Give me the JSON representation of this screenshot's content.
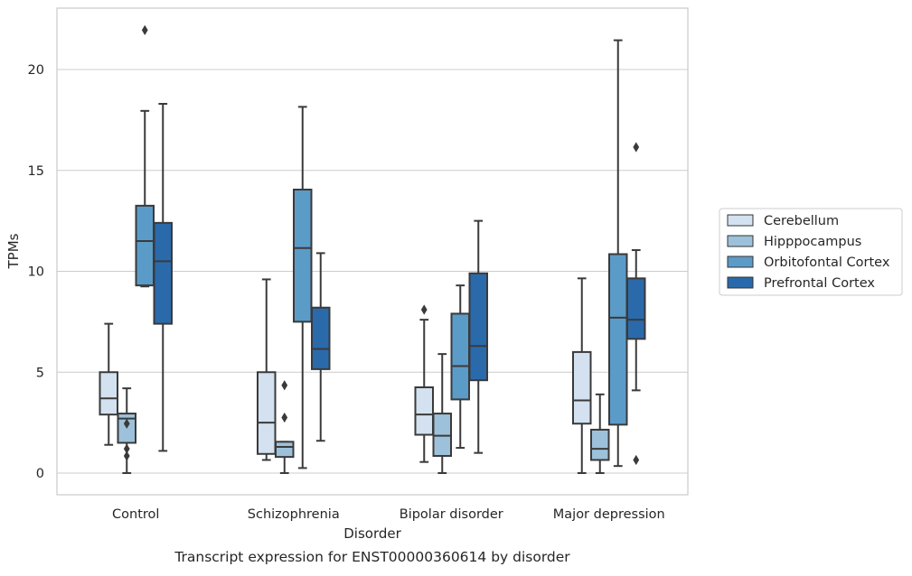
{
  "chart_data": {
    "type": "box",
    "title": "",
    "caption": "Transcript expression for ENST00000360614 by disorder",
    "xlabel": "Disorder",
    "ylabel": "TPMs",
    "ylim": [
      -1.05,
      23.4
    ],
    "yticks": [
      0,
      5,
      10,
      15,
      20
    ],
    "grid": "horizontal",
    "legend_position": "right",
    "categories": [
      "Control",
      "Schizophrenia",
      "Bipolar disorder",
      "Major depression"
    ],
    "series": [
      {
        "name": "Cerebellum",
        "color": "#d3e1f0",
        "boxes": [
          {
            "whislo": 1.4,
            "q1": 2.9,
            "med": 3.7,
            "q3": 5.0,
            "whishi": 7.4,
            "fliers": []
          },
          {
            "whislo": 0.65,
            "q1": 0.95,
            "med": 2.5,
            "q3": 5.0,
            "whishi": 9.6,
            "fliers": []
          },
          {
            "whislo": 0.55,
            "q1": 1.9,
            "med": 2.9,
            "q3": 4.25,
            "whishi": 7.6,
            "fliers": [
              8.1
            ]
          },
          {
            "whislo": 0.0,
            "q1": 2.45,
            "med": 3.6,
            "q3": 6.0,
            "whishi": 9.65,
            "fliers": []
          }
        ]
      },
      {
        "name": "Hipppocampus",
        "color": "#9dc1da",
        "boxes": [
          {
            "whislo": 0.0,
            "q1": 1.5,
            "med": 2.7,
            "q3": 2.95,
            "whishi": 4.2,
            "fliers": [
              2.45,
              1.2,
              0.85
            ]
          },
          {
            "whislo": 0.0,
            "q1": 0.8,
            "med": 1.3,
            "q3": 1.55,
            "whishi": 1.55,
            "fliers": [
              4.35,
              2.75
            ]
          },
          {
            "whislo": 0.0,
            "q1": 0.85,
            "med": 1.85,
            "q3": 2.95,
            "whishi": 5.9,
            "fliers": []
          },
          {
            "whislo": 0.0,
            "q1": 0.65,
            "med": 1.2,
            "q3": 2.15,
            "whishi": 3.9,
            "fliers": []
          }
        ]
      },
      {
        "name": "Orbitofontal Cortex",
        "color": "#5b9bc8",
        "boxes": [
          {
            "whislo": 9.25,
            "q1": 9.3,
            "med": 11.5,
            "q3": 13.25,
            "whishi": 17.95,
            "fliers": [
              21.95
            ]
          },
          {
            "whislo": 0.25,
            "q1": 7.5,
            "med": 11.15,
            "q3": 14.05,
            "whishi": 18.15,
            "fliers": []
          },
          {
            "whislo": 1.25,
            "q1": 3.65,
            "med": 5.3,
            "q3": 7.9,
            "whishi": 9.3,
            "fliers": []
          },
          {
            "whislo": 0.35,
            "q1": 2.4,
            "med": 7.7,
            "q3": 10.85,
            "whishi": 21.45,
            "fliers": []
          }
        ]
      },
      {
        "name": "Prefrontal Cortex",
        "color": "#2a6aab",
        "boxes": [
          {
            "whislo": 1.1,
            "q1": 7.4,
            "med": 10.5,
            "q3": 12.4,
            "whishi": 18.3,
            "fliers": []
          },
          {
            "whislo": 1.6,
            "q1": 5.15,
            "med": 6.15,
            "q3": 8.2,
            "whishi": 10.9,
            "fliers": []
          },
          {
            "whislo": 1.0,
            "q1": 4.6,
            "med": 6.3,
            "q3": 9.9,
            "whishi": 12.5,
            "fliers": []
          },
          {
            "whislo": 4.1,
            "q1": 6.65,
            "med": 7.6,
            "q3": 9.65,
            "whishi": 11.05,
            "fliers": [
              0.65,
              16.15
            ]
          }
        ]
      }
    ]
  }
}
